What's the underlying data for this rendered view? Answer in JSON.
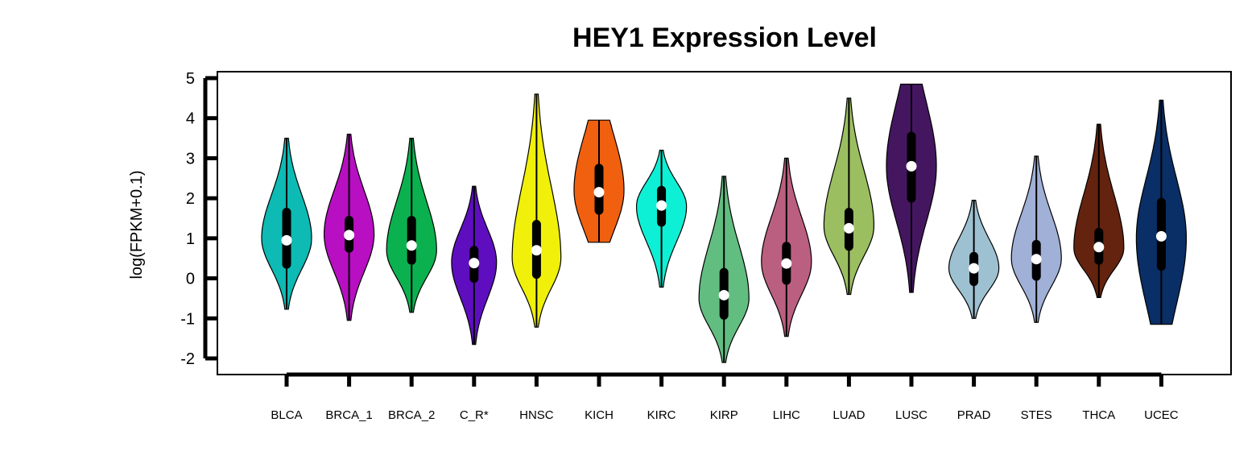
{
  "chart_data": {
    "type": "violin",
    "title": "HEY1 Expression Level",
    "ylabel": "log(FPKM+0.1)",
    "xlabel": "",
    "ylim": [
      -2.4,
      5.15
    ],
    "yticks": [
      -2,
      -1,
      0,
      1,
      2,
      3,
      4,
      5
    ],
    "ytick_labels": [
      "-2",
      "-1",
      "0",
      "1",
      "2",
      "3",
      "4",
      "5"
    ],
    "grid": false,
    "legend": "none",
    "categories": [
      "BLCA",
      "BRCA_1",
      "BRCA_2",
      "C_R*",
      "HNSC",
      "KICH",
      "KIRC",
      "KIRP",
      "LIHC",
      "LUAD",
      "LUSC",
      "PRAD",
      "STES",
      "THCA",
      "UCEC"
    ],
    "colors": [
      "#0dbab4",
      "#b70fc1",
      "#0bb14f",
      "#5e0ebf",
      "#f0f00b",
      "#f0600f",
      "#0ef0d6",
      "#62bd81",
      "#bb5f80",
      "#9bbf60",
      "#451660",
      "#9ec1d1",
      "#a0b0d6",
      "#63230f",
      "#0a2e66"
    ],
    "series": [
      {
        "min": -0.77,
        "max": 3.5,
        "q1": 0.35,
        "q3": 1.65,
        "median": 0.95,
        "whisker_low": -0.75,
        "whisker_high": 3.5,
        "mode": 1.0,
        "max_width": 0.4,
        "flat_top": false,
        "flat_bottom": false
      },
      {
        "min": -1.05,
        "max": 3.6,
        "q1": 0.75,
        "q3": 1.45,
        "median": 1.08,
        "whisker_low": -1.05,
        "whisker_high": 3.6,
        "mode": 1.1,
        "max_width": 0.4,
        "flat_top": false,
        "flat_bottom": false
      },
      {
        "min": -0.85,
        "max": 3.5,
        "q1": 0.45,
        "q3": 1.45,
        "median": 0.82,
        "whisker_low": -0.85,
        "whisker_high": 3.5,
        "mode": 0.7,
        "max_width": 0.4,
        "flat_top": false,
        "flat_bottom": false
      },
      {
        "min": -1.65,
        "max": 2.3,
        "q1": 0.0,
        "q3": 0.7,
        "median": 0.38,
        "whisker_low": -1.65,
        "whisker_high": 2.3,
        "mode": 0.4,
        "max_width": 0.36,
        "flat_top": false,
        "flat_bottom": false
      },
      {
        "min": -1.22,
        "max": 4.6,
        "q1": 0.1,
        "q3": 1.35,
        "median": 0.7,
        "whisker_low": -1.22,
        "whisker_high": 4.6,
        "mode": 0.5,
        "max_width": 0.39,
        "flat_top": false,
        "flat_bottom": false
      },
      {
        "min": 0.9,
        "max": 3.95,
        "q1": 1.7,
        "q3": 2.75,
        "median": 2.15,
        "whisker_low": 0.9,
        "whisker_high": 3.95,
        "mode": 2.2,
        "max_width": 0.4,
        "flat_top": true,
        "flat_bottom": true
      },
      {
        "min": -0.22,
        "max": 3.2,
        "q1": 1.4,
        "q3": 2.2,
        "median": 1.82,
        "whisker_low": -0.22,
        "whisker_high": 3.2,
        "mode": 1.8,
        "max_width": 0.4,
        "flat_top": false,
        "flat_bottom": false
      },
      {
        "min": -2.1,
        "max": 2.55,
        "q1": -0.92,
        "q3": 0.15,
        "median": -0.42,
        "whisker_low": -2.1,
        "whisker_high": 2.55,
        "mode": -0.5,
        "max_width": 0.4,
        "flat_top": false,
        "flat_bottom": false
      },
      {
        "min": -1.45,
        "max": 3.0,
        "q1": -0.05,
        "q3": 0.8,
        "median": 0.37,
        "whisker_low": -1.45,
        "whisker_high": 3.0,
        "mode": 0.4,
        "max_width": 0.4,
        "flat_top": false,
        "flat_bottom": false
      },
      {
        "min": -0.4,
        "max": 4.5,
        "q1": 0.8,
        "q3": 1.65,
        "median": 1.25,
        "whisker_low": -0.4,
        "whisker_high": 4.5,
        "mode": 1.3,
        "max_width": 0.4,
        "flat_top": false,
        "flat_bottom": false
      },
      {
        "min": -0.35,
        "max": 4.85,
        "q1": 2.0,
        "q3": 3.55,
        "median": 2.8,
        "whisker_low": -0.35,
        "whisker_high": 4.85,
        "mode": 2.8,
        "max_width": 0.4,
        "flat_top": true,
        "flat_bottom": false
      },
      {
        "min": -1.0,
        "max": 1.95,
        "q1": -0.08,
        "q3": 0.55,
        "median": 0.25,
        "whisker_low": -1.0,
        "whisker_high": 1.95,
        "mode": 0.25,
        "max_width": 0.4,
        "flat_top": false,
        "flat_bottom": false
      },
      {
        "min": -1.1,
        "max": 3.05,
        "q1": 0.05,
        "q3": 0.85,
        "median": 0.48,
        "whisker_low": -1.1,
        "whisker_high": 3.05,
        "mode": 0.5,
        "max_width": 0.4,
        "flat_top": false,
        "flat_bottom": false
      },
      {
        "min": -0.48,
        "max": 3.85,
        "q1": 0.45,
        "q3": 1.15,
        "median": 0.78,
        "whisker_low": -0.48,
        "whisker_high": 3.85,
        "mode": 0.75,
        "max_width": 0.4,
        "flat_top": false,
        "flat_bottom": false
      },
      {
        "min": -1.15,
        "max": 4.45,
        "q1": 0.3,
        "q3": 1.9,
        "median": 1.05,
        "whisker_low": -1.15,
        "whisker_high": 4.45,
        "mode": 1.0,
        "max_width": 0.4,
        "flat_top": false,
        "flat_bottom": true
      }
    ]
  }
}
